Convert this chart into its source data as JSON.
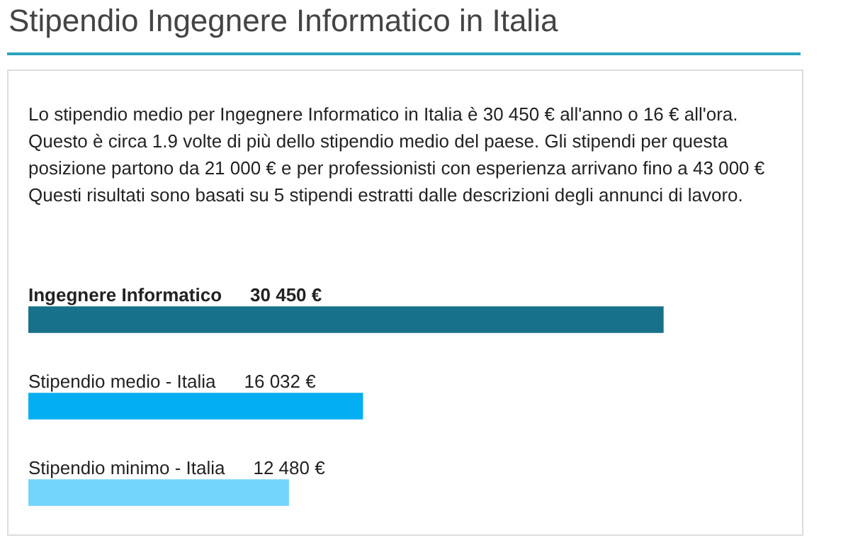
{
  "chart_data": {
    "type": "bar",
    "orientation": "horizontal",
    "title": "Stipendio Ingegnere Informatico in Italia",
    "annotations": [
      "Lo stipendio medio per Ingegnere Informatico in Italia è 30 450 € all'anno o 16 € all'ora. Questo è circa 1.9 volte di più dello stipendio medio del paese. Gli stipendi per questa posizione partono da 21 000 € e per professionisti con esperienza arrivano fino a 43 000 € Questi risultati sono basati su 5 stipendi estratti dalle descrizioni degli annunci di lavoro."
    ],
    "categories": [
      "Ingegnere Informatico",
      "Stipendio medio - Italia",
      "Stipendio minimo - Italia"
    ],
    "values": [
      30450,
      16032,
      12480
    ],
    "colors": [
      "#17718a",
      "#03aef2",
      "#73d5fb"
    ],
    "value_labels": [
      "30 450 €",
      "16 032 €",
      "12 480 €"
    ]
  }
}
